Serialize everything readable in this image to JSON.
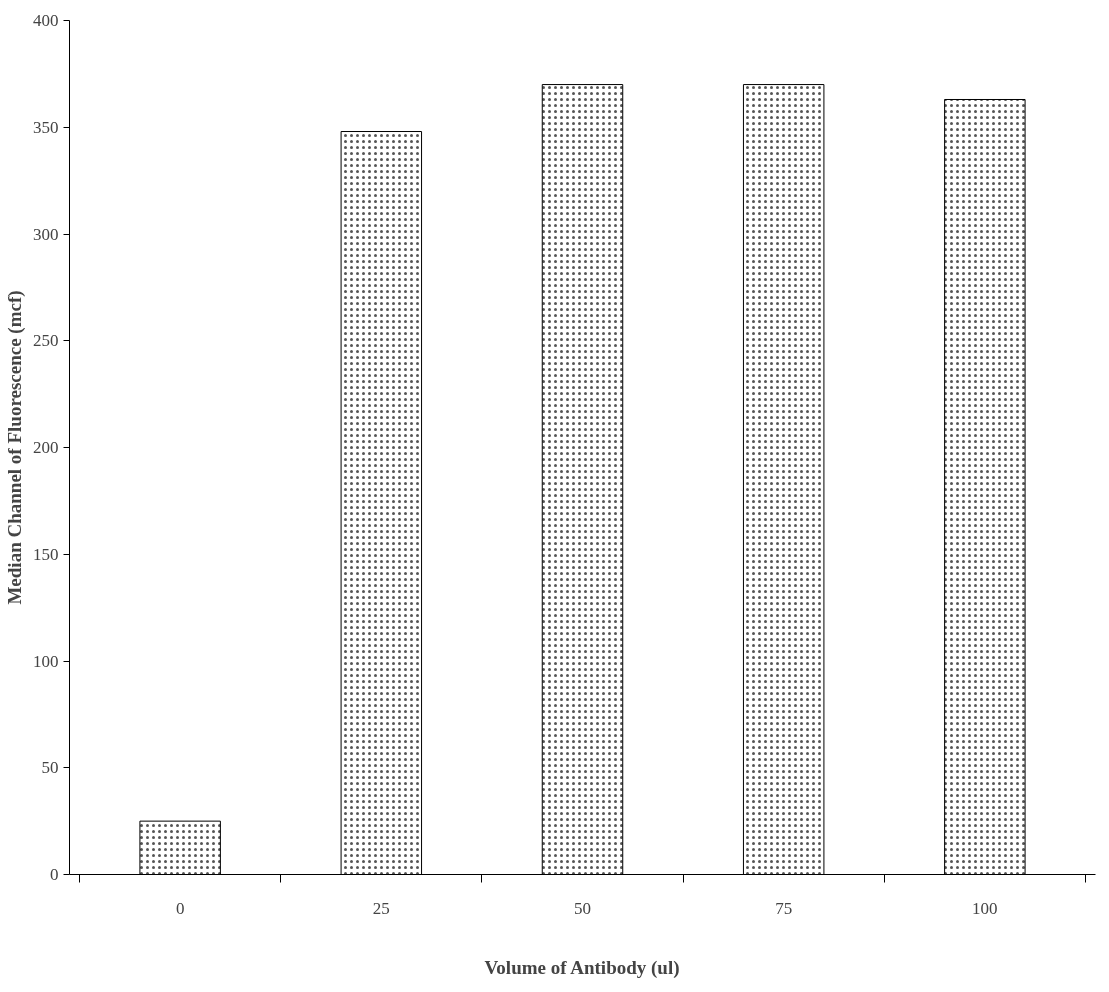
{
  "chart_data": {
    "type": "bar",
    "xlabel": "Volume of Antibody (ul)",
    "ylabel": "Median Channel of Fluorescence (mcf)",
    "categories": [
      "0",
      "25",
      "50",
      "75",
      "100"
    ],
    "values": [
      25,
      348,
      370,
      370,
      363
    ],
    "color": "#ffffff",
    "ylim": [
      0,
      400
    ],
    "yticks": [
      0,
      50,
      100,
      150,
      200,
      250,
      300,
      350,
      400
    ],
    "grid": false
  }
}
